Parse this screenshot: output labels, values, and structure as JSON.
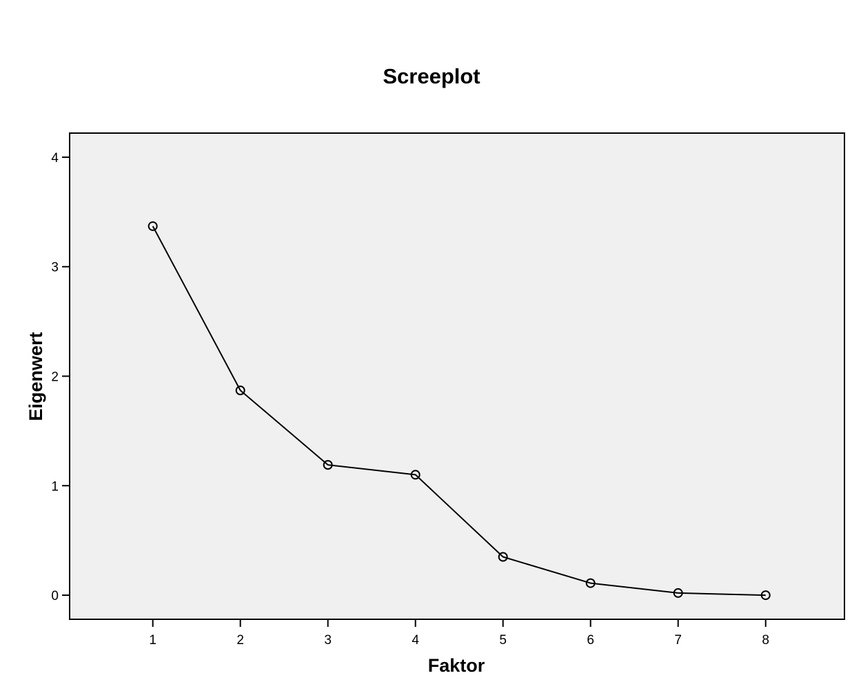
{
  "chart_data": {
    "type": "line",
    "title": "Screeplot",
    "xlabel": "Faktor",
    "ylabel": "Eigenwert",
    "x": [
      1,
      2,
      3,
      4,
      5,
      6,
      7,
      8
    ],
    "y": [
      3.37,
      1.87,
      1.19,
      1.1,
      0.35,
      0.11,
      0.02,
      0.0
    ],
    "xlim": [
      0.05,
      8.9
    ],
    "ylim": [
      -0.22,
      4.22
    ],
    "xticks": [
      "1",
      "2",
      "3",
      "4",
      "5",
      "6",
      "7",
      "8"
    ],
    "yticks": [
      "0",
      "1",
      "2",
      "3",
      "4"
    ],
    "grid": false,
    "marker": "open-circle",
    "colors": {
      "plot_background": "#f0f0f0",
      "line": "#000000",
      "frame": "#000000"
    }
  }
}
